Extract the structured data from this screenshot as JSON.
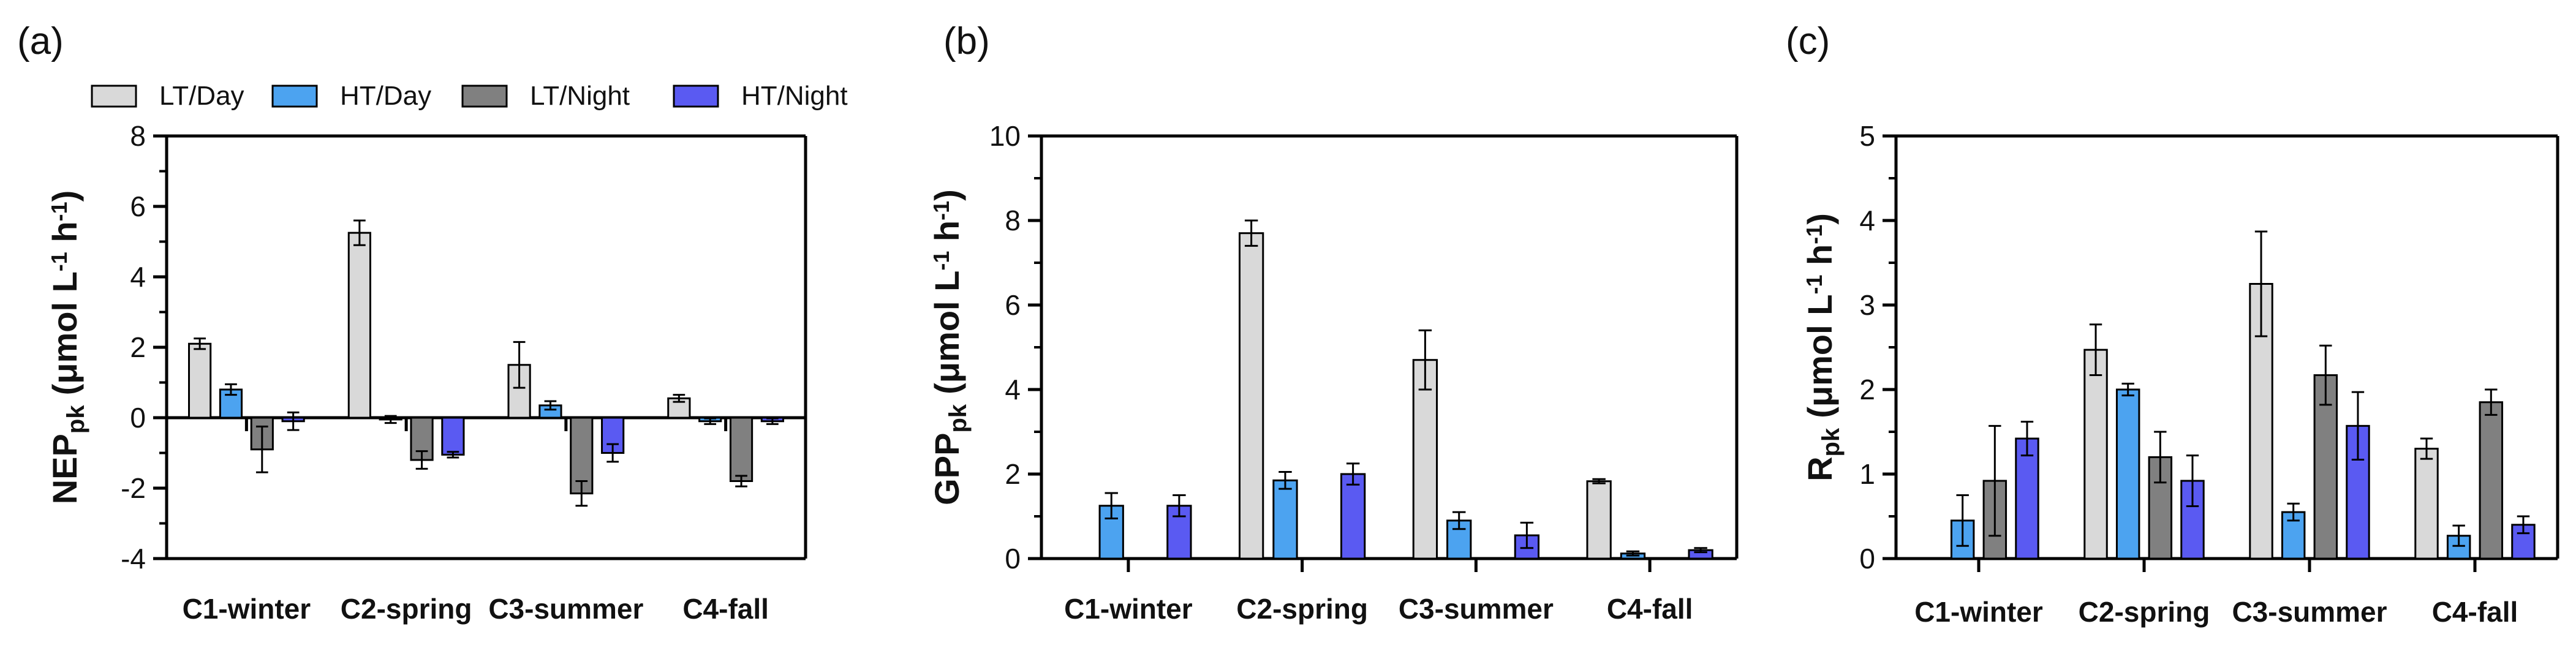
{
  "legend": [
    {
      "label": "LT/Day",
      "color": "#d9d9d9"
    },
    {
      "label": "HT/Day",
      "color": "#4ca3f0"
    },
    {
      "label": "LT/Night",
      "color": "#808080"
    },
    {
      "label": "HT/Night",
      "color": "#5a5af2"
    }
  ],
  "chart_data": [
    {
      "type": "bar",
      "panel": "(a)",
      "ylabel": "NEPpk (μmol L-1 h-1)",
      "ylabel_main": "NEP",
      "ylabel_sub": "pk",
      "ylabel_unit": "(μmol L",
      "ylabel_exp1": "-1",
      "ylabel_unit2": " h",
      "ylabel_exp2": "-1",
      "ylabel_close": ")",
      "ylim": [
        -4,
        8
      ],
      "yticks": [
        -4,
        -2,
        0,
        2,
        4,
        6,
        8
      ],
      "baseline": 0,
      "categories": [
        "C1-winter",
        "C2-spring",
        "C3-summer",
        "C4-fall"
      ],
      "series": [
        {
          "name": "LT/Day",
          "values": [
            2.1,
            5.25,
            1.5,
            0.55
          ],
          "errors": [
            0.15,
            0.35,
            0.65,
            0.1
          ]
        },
        {
          "name": "HT/Day",
          "values": [
            0.8,
            -0.05,
            0.35,
            -0.1
          ],
          "errors": [
            0.15,
            0.1,
            0.12,
            0.08
          ]
        },
        {
          "name": "LT/Night",
          "values": [
            -0.9,
            -1.2,
            -2.15,
            -1.8
          ],
          "errors": [
            0.65,
            0.25,
            0.35,
            0.15
          ]
        },
        {
          "name": "HT/Night",
          "values": [
            -0.1,
            -1.05,
            -1.0,
            -0.1
          ],
          "errors": [
            0.25,
            0.08,
            0.25,
            0.08
          ]
        }
      ]
    },
    {
      "type": "bar",
      "panel": "(b)",
      "ylabel": "GPPpk (μmol L-1 h-1)",
      "ylabel_main": "GPP",
      "ylabel_sub": "pk",
      "ylabel_unit": "(μmol L",
      "ylabel_exp1": "-1",
      "ylabel_unit2": " h",
      "ylabel_exp2": "-1",
      "ylabel_close": ")",
      "ylim": [
        0,
        10
      ],
      "yticks": [
        0,
        2,
        4,
        6,
        8,
        10
      ],
      "baseline": 0,
      "categories": [
        "C1-winter",
        "C2-spring",
        "C3-summer",
        "C4-fall"
      ],
      "series": [
        {
          "name": "LT/Day",
          "values": [
            0,
            7.7,
            4.7,
            1.83
          ],
          "errors": [
            0,
            0.3,
            0.7,
            0.05
          ]
        },
        {
          "name": "HT/Day",
          "values": [
            1.25,
            1.85,
            0.9,
            0.12
          ],
          "errors": [
            0.3,
            0.2,
            0.2,
            0.05
          ]
        },
        {
          "name": "LT/Night",
          "values": [
            0,
            0,
            0,
            0
          ],
          "errors": [
            0,
            0,
            0,
            0
          ]
        },
        {
          "name": "HT/Night",
          "values": [
            1.25,
            2.0,
            0.55,
            0.2
          ],
          "errors": [
            0.25,
            0.25,
            0.3,
            0.05
          ]
        }
      ]
    },
    {
      "type": "bar",
      "panel": "(c)",
      "ylabel": "Rpk (μmol L-1 h-1)",
      "ylabel_main": "R",
      "ylabel_sub": "pk",
      "ylabel_unit": "(μmol L",
      "ylabel_exp1": "-1",
      "ylabel_unit2": " h",
      "ylabel_exp2": "-1",
      "ylabel_close": ")",
      "ylim": [
        0,
        5
      ],
      "yticks": [
        0,
        1,
        2,
        3,
        4,
        5
      ],
      "baseline": 0,
      "categories": [
        "C1-winter",
        "C2-spring",
        "C3-summer",
        "C4-fall"
      ],
      "series": [
        {
          "name": "LT/Day",
          "values": [
            0,
            2.47,
            3.25,
            1.3
          ],
          "errors": [
            0,
            0.3,
            0.62,
            0.12
          ]
        },
        {
          "name": "HT/Day",
          "values": [
            0.45,
            2.0,
            0.55,
            0.27
          ],
          "errors": [
            0.3,
            0.07,
            0.1,
            0.12
          ]
        },
        {
          "name": "LT/Night",
          "values": [
            0.92,
            1.2,
            2.17,
            1.85
          ],
          "errors": [
            0.65,
            0.3,
            0.35,
            0.15
          ]
        },
        {
          "name": "HT/Night",
          "values": [
            1.42,
            0.92,
            1.57,
            0.4
          ],
          "errors": [
            0.2,
            0.3,
            0.4,
            0.1
          ]
        }
      ]
    }
  ]
}
